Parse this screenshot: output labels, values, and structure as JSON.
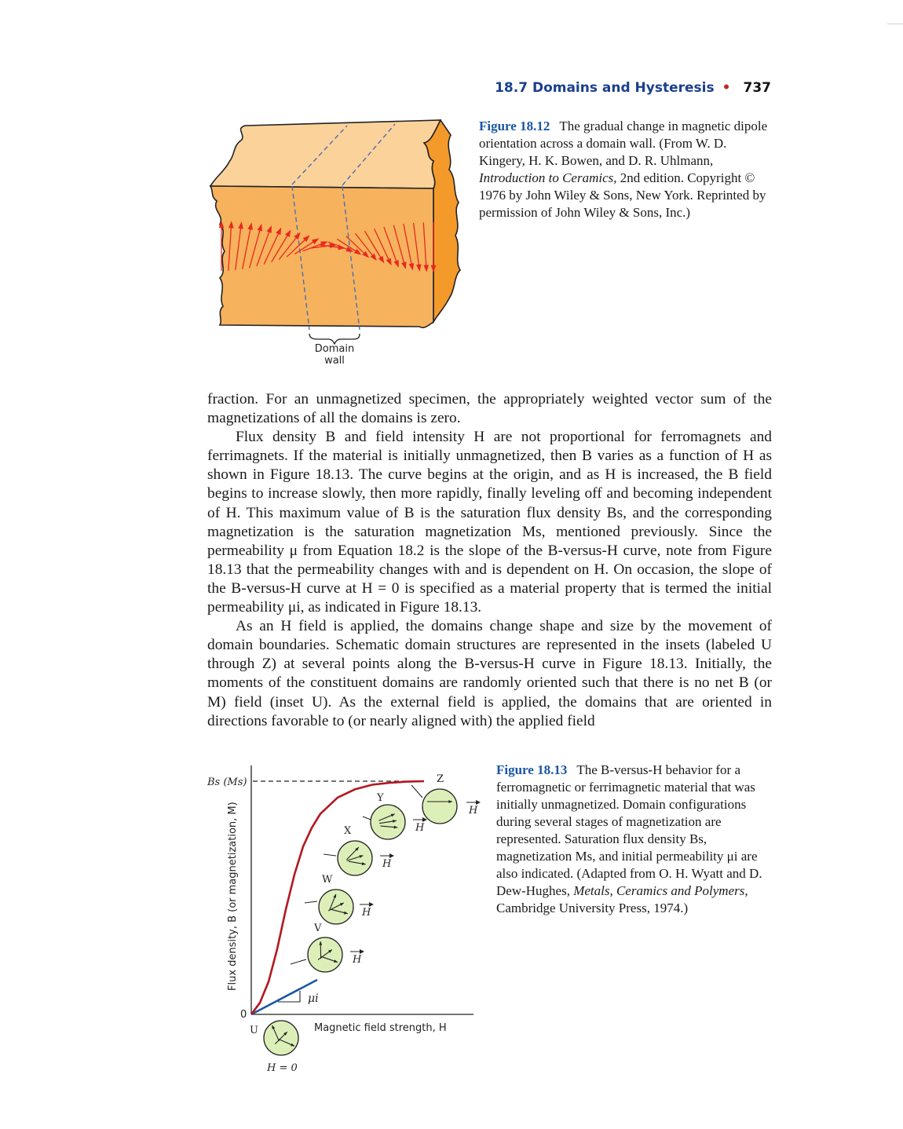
{
  "running_head": {
    "section": "18.7 Domains and Hysteresis",
    "page_number": "737"
  },
  "figure_1812": {
    "label": "Figure 18.12",
    "caption_parts": [
      "The gradual change in magnetic dipole orientation across a domain wall. (From W. D. Kingery, H. K. Bowen, and D. R. Uhlmann, ",
      "Introduction to Ceramics,",
      " 2nd edition. Copyright © 1976 by John Wiley & Sons, New York. Reprinted by permission of John Wiley & Sons, Inc.)"
    ],
    "domain_wall_label_line1": "Domain",
    "domain_wall_label_line2": "wall",
    "colors": {
      "block_top": "#fbd29a",
      "block_front": "#f7b25e",
      "block_side": "#f49a2a",
      "arrows": "#e8281e",
      "wall_lines": "#4a6fb0"
    }
  },
  "body_paragraphs": [
    "fraction. For an unmagnetized specimen, the appropriately weighted vector sum of the magnetizations of all the domains is zero.",
    "Flux density B and field intensity H are not proportional for ferromagnets and ferrimagnets. If the material is initially unmagnetized, then B varies as a function of H as shown in Figure 18.13. The curve begins at the origin, and as H is increased, the B field begins to increase slowly, then more rapidly, finally leveling off and becoming independent of H. This maximum value of B is the saturation flux density Bs, and the corresponding magnetization is the saturation magnetization Ms, mentioned previously. Since the permeability μ from Equation 18.2 is the slope of the B-versus-H curve, note from Figure 18.13 that the permeability changes with and is dependent on H. On occasion, the slope of the B-versus-H curve at H = 0 is specified as a material property that is termed the initial permeability μi, as indicated in Figure 18.13.",
    "As an H field is applied, the domains change shape and size by the movement of domain boundaries. Schematic domain structures are represented in the insets (labeled U through Z) at several points along the B-versus-H curve in Figure 18.13. Initially, the moments of the constituent domains are randomly oriented such that there is no net B (or M) field (inset U). As the external field is applied, the domains that are oriented in directions favorable to (or nearly aligned with) the applied field"
  ],
  "figure_1813": {
    "label": "Figure 18.13",
    "caption_parts": [
      "The B-versus-H behavior for a ferromagnetic or ferrimagnetic material that was initially unmagnetized. Domain configurations during several stages of magnetization are represented. Saturation flux density Bs, magnetization Ms, and initial permeability μi are also indicated. (Adapted from O. H. Wyatt and D. Dew-Hughes, ",
      "Metals, Ceramics and Polymers,",
      " Cambridge University Press, 1974.)"
    ],
    "ylabel": "Flux density, B (or magnetization, M)",
    "xlabel": "Magnetic field strength, H",
    "origin_label": "0",
    "saturation_label": "Bs (Ms)",
    "mu_label": "μi",
    "h_zero_label": "H = 0",
    "h_label": "H",
    "inset_labels": [
      "U",
      "V",
      "W",
      "X",
      "Y",
      "Z"
    ],
    "colors": {
      "curve": "#b3181f",
      "initial_slope": "#1b56a5",
      "inset_fill": "#dcefb8"
    }
  },
  "chart_data": {
    "type": "line",
    "title": "",
    "xlabel": "Magnetic field strength, H",
    "ylabel": "Flux density, B (or magnetization, M)",
    "grid": false,
    "series": [
      {
        "name": "",
        "x": [
          0,
          0.05,
          0.1,
          0.15,
          0.2,
          0.25,
          0.3,
          0.35,
          0.4,
          0.5,
          0.6,
          0.7,
          0.8,
          0.9,
          1.0
        ],
        "y": [
          0,
          0.05,
          0.14,
          0.28,
          0.45,
          0.6,
          0.72,
          0.8,
          0.86,
          0.93,
          0.965,
          0.985,
          0.993,
          0.998,
          1.0
        ]
      }
    ],
    "saturation_level": 1.0
  }
}
